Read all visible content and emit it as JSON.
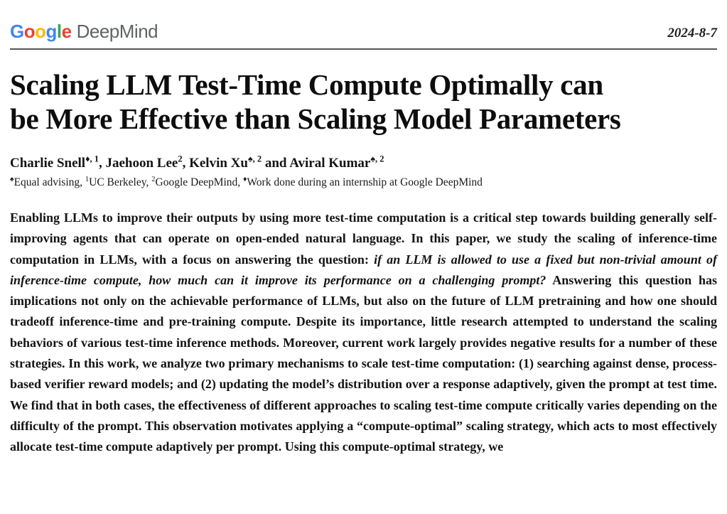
{
  "header": {
    "logo": {
      "google_letters": [
        {
          "ch": "G",
          "color": "#4285F4"
        },
        {
          "ch": "o",
          "color": "#EA4335"
        },
        {
          "ch": "o",
          "color": "#FBBC05"
        },
        {
          "ch": "g",
          "color": "#4285F4"
        },
        {
          "ch": "l",
          "color": "#34A853"
        },
        {
          "ch": "e",
          "color": "#EA4335"
        }
      ],
      "deepmind": "DeepMind",
      "deepmind_color": "#5F6368"
    },
    "date": "2024-8-7"
  },
  "title_lines": [
    "Scaling LLM Test-Time Compute Optimally can",
    "be More Effective than Scaling Model Parameters"
  ],
  "authors": [
    {
      "name": "Charlie Snell",
      "sup": "♦, 1",
      "sep": ", "
    },
    {
      "name": "Jaehoon Lee",
      "sup": "2",
      "sep": ", "
    },
    {
      "name": "Kelvin Xu",
      "sup": "♠, 2",
      "sep": " and "
    },
    {
      "name": "Aviral Kumar",
      "sup": "♠, 2",
      "sep": ""
    }
  ],
  "affiliations": [
    {
      "sup": "♠",
      "text": "Equal advising, "
    },
    {
      "sup": "1",
      "text": "UC Berkeley, "
    },
    {
      "sup": "2",
      "text": "Google DeepMind, "
    },
    {
      "sup": "♦",
      "text": "Work done during an internship at Google DeepMind"
    }
  ],
  "abstract_segments": [
    {
      "style": "normal",
      "text": "Enabling LLMs to improve their outputs by using more test-time computation is a critical step towards building generally self-improving agents that can operate on open-ended natural language. In this paper, we study the scaling of inference-time computation in LLMs, with a focus on answering the question: "
    },
    {
      "style": "italic",
      "text": "if an LLM is allowed to use a fixed but non-trivial amount of inference-time compute, how much can it improve its performance on a challenging prompt?"
    },
    {
      "style": "normal",
      "text": " Answering this question has implications not only on the achievable performance of LLMs, but also on the future of LLM pretraining and how one should tradeoff inference-time and pre-training compute. Despite its importance, little research attempted to understand the scaling behaviors of various test-time inference methods. Moreover, current work largely provides negative results for a number of these strategies. In this work, we analyze two primary mechanisms to scale test-time computation: (1) searching against dense, process-based verifier reward models; and (2) updating the model’s distribution over a response adaptively, given the prompt at test time. We find that in both cases, the effectiveness of different approaches to scaling test-time compute critically varies depending on the difficulty of the prompt. This observation motivates applying a “compute-optimal” scaling strategy, which acts to most effectively allocate test-time compute adaptively per prompt. Using this compute-optimal strategy, we"
    }
  ]
}
